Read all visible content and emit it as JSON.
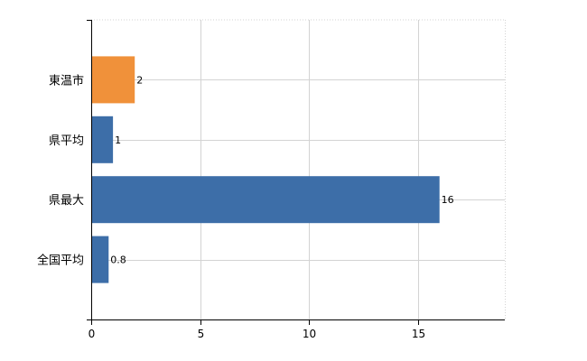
{
  "chart_data": {
    "type": "bar",
    "orientation": "horizontal",
    "categories": [
      "東温市",
      "県平均",
      "県最大",
      "全国平均"
    ],
    "values": [
      2,
      1,
      16,
      0.8
    ],
    "data_labels": [
      "2",
      "1",
      "16",
      "0.8"
    ],
    "bar_colors": [
      "#f0913a",
      "#3d6ea8",
      "#3d6ea8",
      "#3d6ea8"
    ],
    "title": "",
    "xlabel": "",
    "ylabel": "",
    "xlim": [
      0,
      19
    ],
    "xticks": [
      0,
      5,
      10,
      15
    ],
    "xtick_labels": [
      "0",
      "5",
      "10",
      "15"
    ],
    "grid": true,
    "legend": "none"
  }
}
